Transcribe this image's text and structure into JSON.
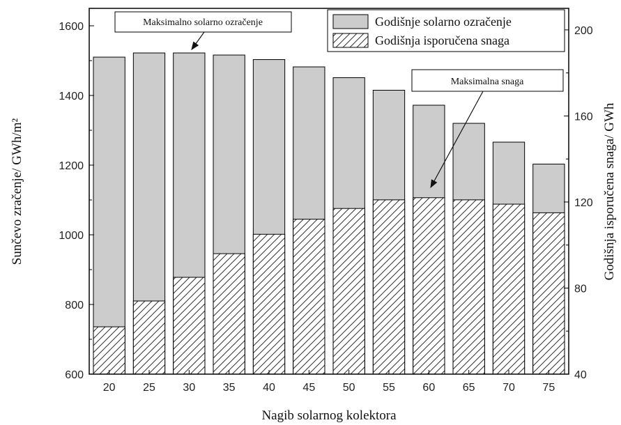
{
  "chart_data": {
    "type": "bar",
    "categories": [
      "20",
      "25",
      "30",
      "35",
      "40",
      "45",
      "50",
      "55",
      "60",
      "65",
      "70",
      "75"
    ],
    "series": [
      {
        "name": "Godišnje solarno ozračenje",
        "axis": "left",
        "color": "#cccccc",
        "values": [
          1510,
          1522,
          1522,
          1516,
          1503,
          1482,
          1451,
          1415,
          1372,
          1320,
          1266,
          1203
        ]
      },
      {
        "name": "Godišnja isporučena snaga",
        "axis": "right",
        "pattern": "hatch",
        "values": [
          62,
          74,
          85,
          96,
          105,
          112,
          117,
          121,
          122,
          121,
          119,
          115
        ]
      }
    ],
    "xlabel": "Nagib solarnog kolektora",
    "ylabel_left": "Sunčevo zračenje/ GWh/m²",
    "ylabel_right": "Godišnja isporučena snaga/ GWh",
    "ylim_left": [
      600,
      1650
    ],
    "ylim_right": [
      40,
      210
    ],
    "yticks_left": [
      "600",
      "800",
      "1000",
      "1200",
      "1400",
      "1600"
    ],
    "yticks_right": [
      "40",
      "80",
      "120",
      "160",
      "200"
    ],
    "legend_position": "top-right",
    "annotations": [
      {
        "text": "Maksimalno solarno ozračenje",
        "target_category": "30"
      },
      {
        "text": "Maksimalna snaga",
        "target_category": "60"
      }
    ]
  }
}
